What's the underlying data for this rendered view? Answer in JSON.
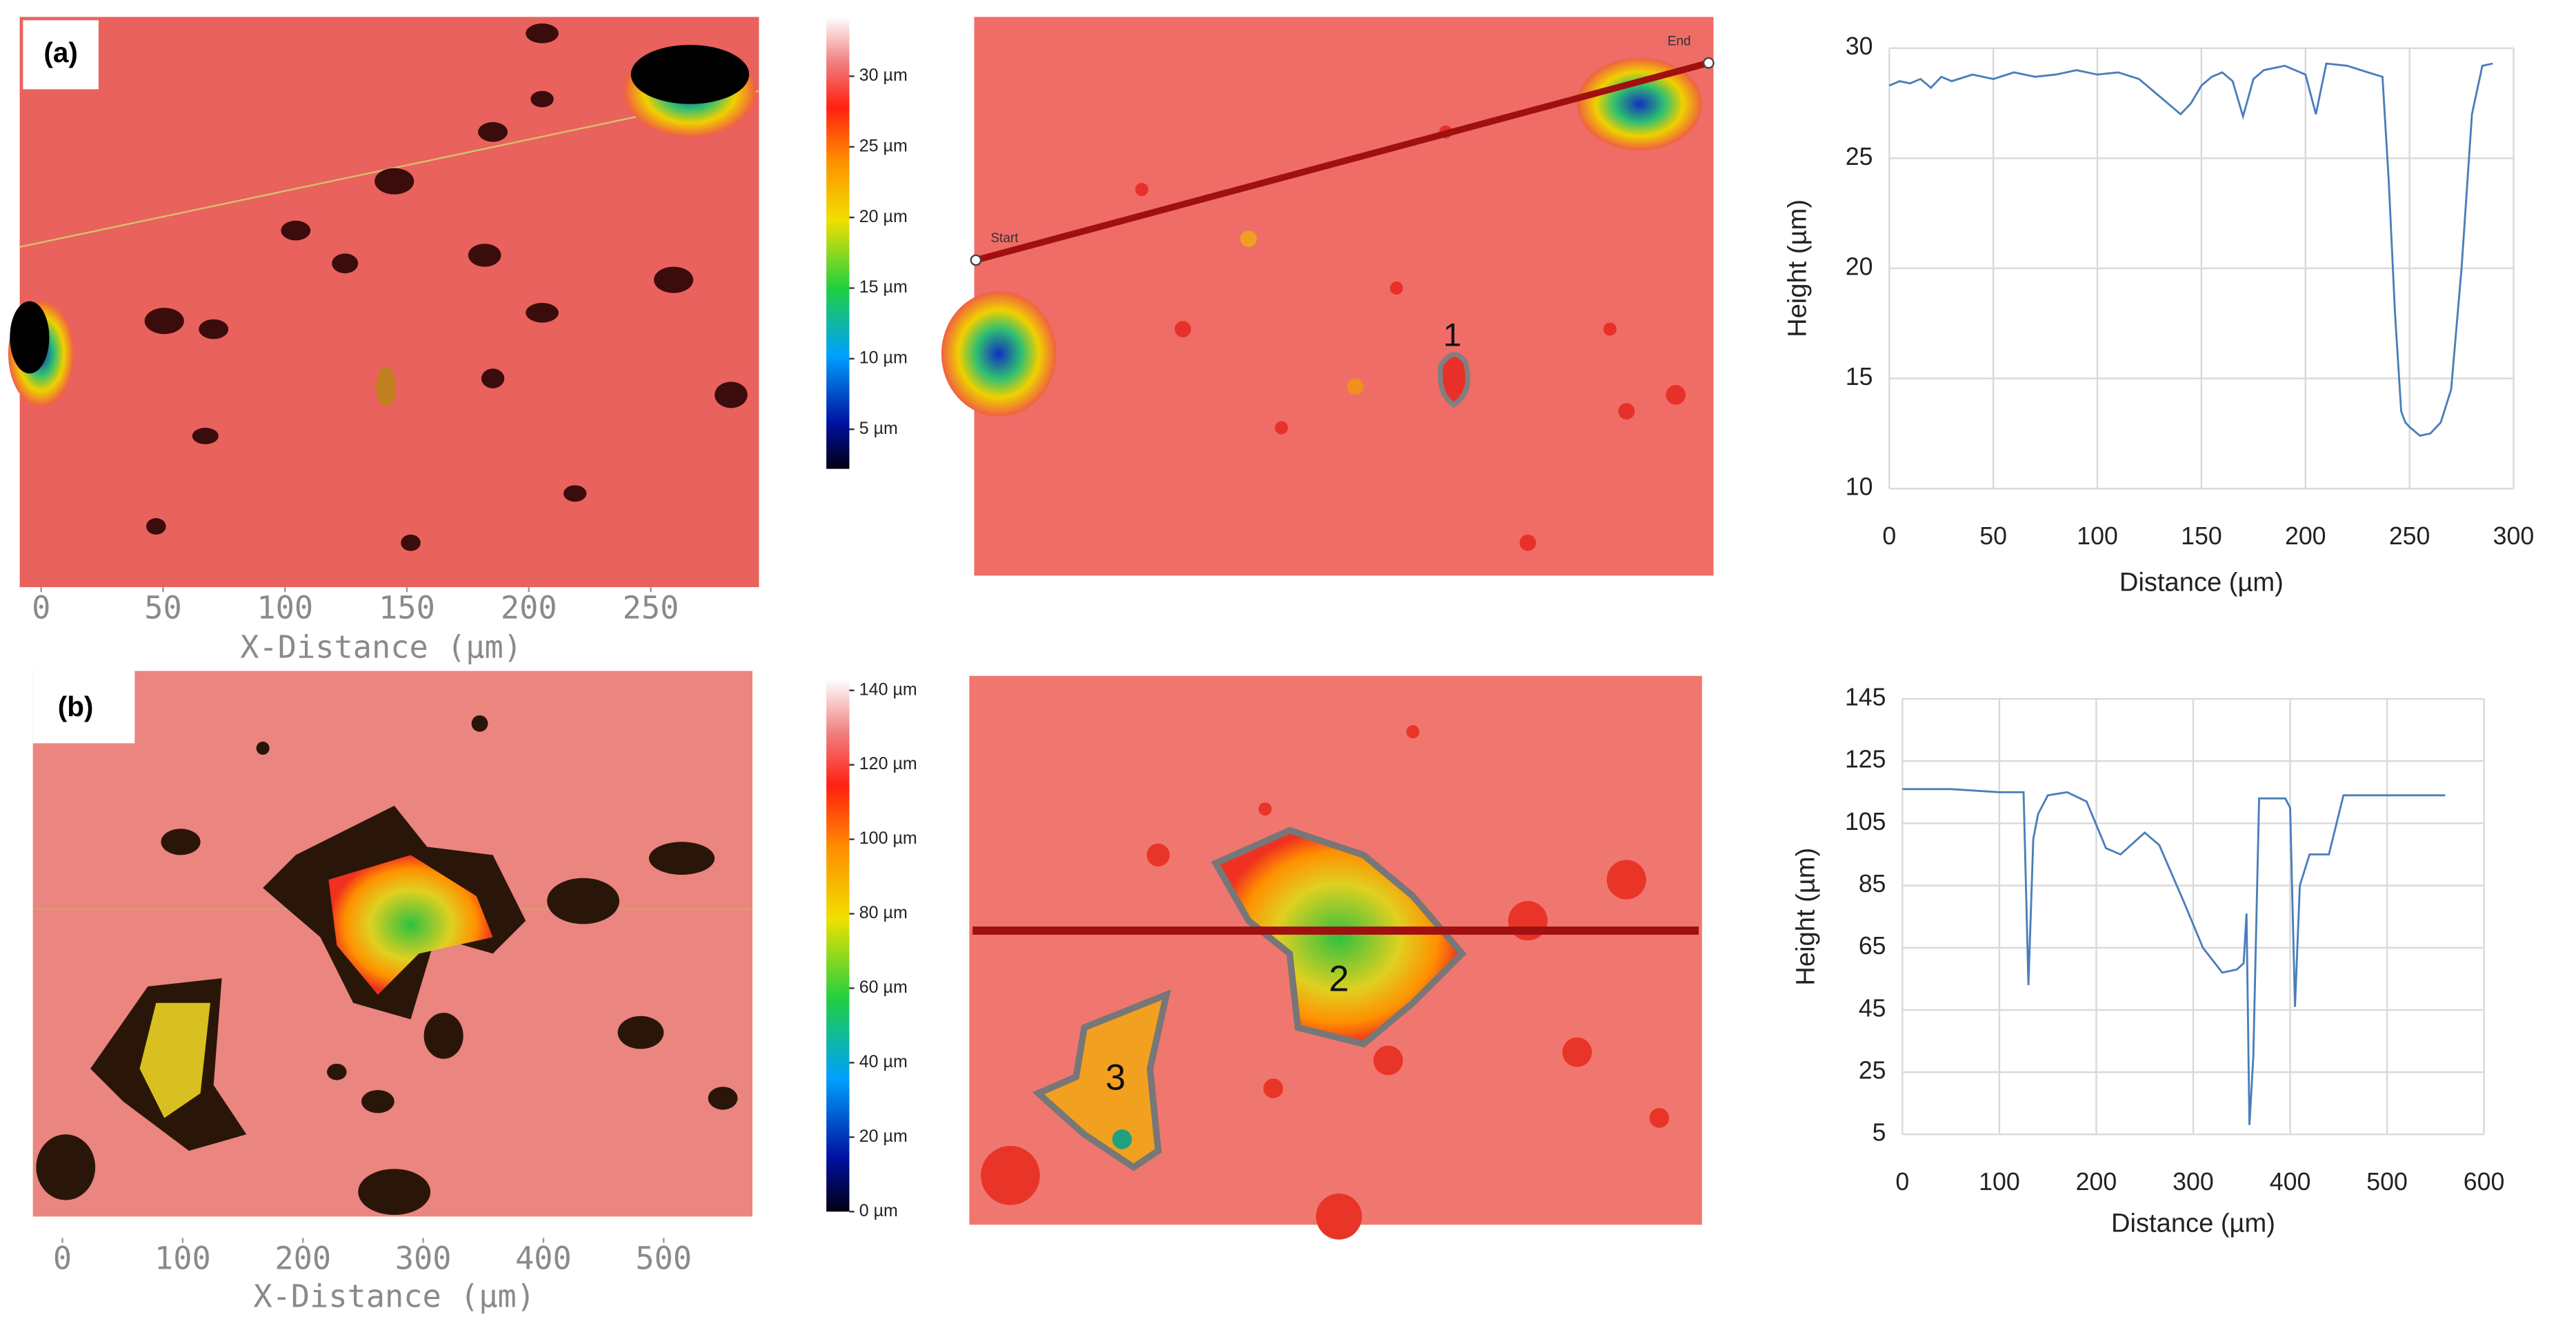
{
  "panels": [
    {
      "label": "(a)",
      "map": {
        "xlabel": "X-Distance (µm)",
        "xticks": [
          0,
          50,
          100,
          150,
          200,
          250
        ],
        "xlim": [
          -8.8,
          294.4
        ]
      },
      "colorbar": {
        "lim": [
          2.2,
          34.2
        ],
        "ticks": [
          {
            "value": 5,
            "label": "5 µm"
          },
          {
            "value": 10,
            "label": "10 µm"
          },
          {
            "value": 15,
            "label": "15 µm"
          },
          {
            "value": 20,
            "label": "20 µm"
          },
          {
            "value": 25,
            "label": "25 µm"
          },
          {
            "value": 30,
            "label": "30 µm"
          }
        ]
      },
      "profile": {
        "start": "Start",
        "end": "End"
      },
      "regions": [
        "1"
      ]
    },
    {
      "label": "(b)",
      "map": {
        "xlabel": "X-Distance (µm)",
        "xticks": [
          0,
          100,
          200,
          300,
          400,
          500
        ],
        "xlim": [
          -24.6,
          573.8
        ]
      },
      "colorbar": {
        "lim": [
          0,
          143
        ],
        "ticks": [
          {
            "value": 0,
            "label": "0 µm"
          },
          {
            "value": 20,
            "label": "20 µm"
          },
          {
            "value": 40,
            "label": "40 µm"
          },
          {
            "value": 60,
            "label": "60 µm"
          },
          {
            "value": 80,
            "label": "80 µm"
          },
          {
            "value": 100,
            "label": "100 µm"
          },
          {
            "value": 120,
            "label": "120 µm"
          },
          {
            "value": 140,
            "label": "140 µm"
          }
        ]
      },
      "regions": [
        "2",
        "3"
      ]
    }
  ],
  "chart_data": [
    {
      "type": "line",
      "xlabel": "Distance (µm)",
      "ylabel": "Height (µm)",
      "grid": true,
      "xlim": [
        0,
        300
      ],
      "xticks": [
        0,
        50,
        100,
        150,
        200,
        250,
        300
      ],
      "ylim": [
        10,
        30
      ],
      "yticks": [
        10,
        15,
        20,
        25,
        30
      ],
      "x": [
        0,
        5,
        10,
        15,
        20,
        25,
        30,
        40,
        50,
        60,
        70,
        80,
        90,
        100,
        110,
        120,
        125,
        130,
        135,
        140,
        145,
        150,
        155,
        160,
        165,
        170,
        175,
        180,
        190,
        200,
        205,
        210,
        220,
        230,
        237,
        240,
        243,
        246,
        248,
        250,
        255,
        260,
        265,
        270,
        275,
        280,
        285,
        290
      ],
      "series": [
        {
          "color": "#4a7ebb",
          "values": [
            28.3,
            28.5,
            28.4,
            28.6,
            28.2,
            28.7,
            28.5,
            28.8,
            28.6,
            28.9,
            28.7,
            28.8,
            29.0,
            28.8,
            28.9,
            28.6,
            28.2,
            27.8,
            27.4,
            27.0,
            27.5,
            28.3,
            28.7,
            28.9,
            28.5,
            26.9,
            28.6,
            29.0,
            29.2,
            28.8,
            27.0,
            29.3,
            29.2,
            28.9,
            28.7,
            24,
            18,
            13.5,
            13,
            12.8,
            12.4,
            12.5,
            13,
            14.5,
            20,
            27,
            29.2,
            29.3
          ]
        }
      ]
    },
    {
      "type": "line",
      "xlabel": "Distance (µm)",
      "ylabel": "Height (µm)",
      "grid": true,
      "xlim": [
        0,
        600
      ],
      "xticks": [
        0,
        100,
        200,
        300,
        400,
        500,
        600
      ],
      "ylim": [
        5,
        145
      ],
      "yticks": [
        5,
        25,
        45,
        65,
        85,
        105,
        125,
        145
      ],
      "x": [
        0,
        50,
        100,
        125,
        130,
        135,
        140,
        150,
        170,
        190,
        210,
        225,
        250,
        265,
        290,
        310,
        330,
        345,
        352,
        355,
        358,
        362,
        368,
        395,
        400,
        405,
        410,
        420,
        440,
        455,
        500,
        560
      ],
      "series": [
        {
          "color": "#4a7ebb",
          "values": [
            116,
            116,
            115,
            115,
            53,
            100,
            108,
            114,
            115,
            112,
            97,
            95,
            102,
            98,
            80,
            65,
            57,
            58,
            60,
            76,
            8,
            30,
            113,
            113,
            110,
            46,
            85,
            95,
            95,
            114,
            114,
            114
          ]
        }
      ]
    }
  ]
}
